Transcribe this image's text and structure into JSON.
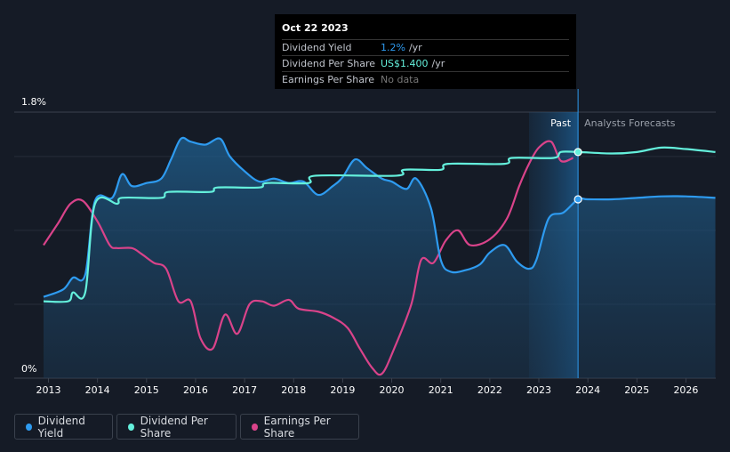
{
  "chart_data": {
    "type": "line",
    "y_axis": {
      "top_label": "1.8%",
      "bottom_label": "0%",
      "ylim": [
        0,
        1.8
      ]
    },
    "x_axis": {
      "ticks": [
        "2013",
        "2014",
        "2015",
        "2016",
        "2017",
        "2018",
        "2019",
        "2020",
        "2021",
        "2022",
        "2023",
        "2024",
        "2025",
        "2026"
      ],
      "xlim": [
        2012.9,
        2026.6
      ]
    },
    "past_label": "Past",
    "forecast_label": "Analysts Forecasts",
    "forecast_start": 2023.8,
    "past_band_start": 2022.8,
    "series": [
      {
        "name": "Dividend Yield",
        "color": "#2e9bf0",
        "points": [
          [
            2012.9,
            0.55
          ],
          [
            2013.3,
            0.6
          ],
          [
            2013.5,
            0.68
          ],
          [
            2013.75,
            0.7
          ],
          [
            2013.95,
            1.2
          ],
          [
            2014.3,
            1.22
          ],
          [
            2014.5,
            1.38
          ],
          [
            2014.7,
            1.3
          ],
          [
            2015.0,
            1.32
          ],
          [
            2015.3,
            1.35
          ],
          [
            2015.5,
            1.48
          ],
          [
            2015.7,
            1.62
          ],
          [
            2015.9,
            1.6
          ],
          [
            2016.2,
            1.58
          ],
          [
            2016.5,
            1.62
          ],
          [
            2016.7,
            1.5
          ],
          [
            2017.0,
            1.4
          ],
          [
            2017.3,
            1.33
          ],
          [
            2017.6,
            1.35
          ],
          [
            2017.9,
            1.32
          ],
          [
            2018.2,
            1.33
          ],
          [
            2018.5,
            1.24
          ],
          [
            2018.8,
            1.3
          ],
          [
            2019.0,
            1.36
          ],
          [
            2019.25,
            1.48
          ],
          [
            2019.5,
            1.42
          ],
          [
            2019.8,
            1.35
          ],
          [
            2020.0,
            1.33
          ],
          [
            2020.3,
            1.28
          ],
          [
            2020.5,
            1.35
          ],
          [
            2020.8,
            1.15
          ],
          [
            2021.0,
            0.8
          ],
          [
            2021.2,
            0.72
          ],
          [
            2021.5,
            0.73
          ],
          [
            2021.8,
            0.77
          ],
          [
            2022.0,
            0.85
          ],
          [
            2022.3,
            0.9
          ],
          [
            2022.55,
            0.79
          ],
          [
            2022.8,
            0.74
          ],
          [
            2022.95,
            0.8
          ],
          [
            2023.2,
            1.08
          ],
          [
            2023.5,
            1.12
          ],
          [
            2023.8,
            1.21
          ],
          [
            2024.0,
            1.21
          ],
          [
            2024.5,
            1.21
          ],
          [
            2025.0,
            1.22
          ],
          [
            2025.5,
            1.23
          ],
          [
            2026.0,
            1.23
          ],
          [
            2026.6,
            1.22
          ]
        ]
      },
      {
        "name": "Dividend Per Share",
        "color": "#64f0dc",
        "points": [
          [
            2012.9,
            0.52
          ],
          [
            2013.4,
            0.52
          ],
          [
            2013.5,
            0.58
          ],
          [
            2013.75,
            0.58
          ],
          [
            2013.95,
            1.18
          ],
          [
            2014.4,
            1.18
          ],
          [
            2014.5,
            1.22
          ],
          [
            2015.3,
            1.22
          ],
          [
            2015.45,
            1.26
          ],
          [
            2016.3,
            1.26
          ],
          [
            2016.45,
            1.29
          ],
          [
            2017.3,
            1.29
          ],
          [
            2017.45,
            1.32
          ],
          [
            2018.3,
            1.32
          ],
          [
            2018.45,
            1.37
          ],
          [
            2020.1,
            1.37
          ],
          [
            2020.25,
            1.41
          ],
          [
            2021.0,
            1.41
          ],
          [
            2021.15,
            1.45
          ],
          [
            2022.3,
            1.45
          ],
          [
            2022.45,
            1.49
          ],
          [
            2023.3,
            1.49
          ],
          [
            2023.45,
            1.53
          ],
          [
            2023.8,
            1.53
          ],
          [
            2024.5,
            1.52
          ],
          [
            2025.0,
            1.53
          ],
          [
            2025.5,
            1.56
          ],
          [
            2026.0,
            1.55
          ],
          [
            2026.6,
            1.53
          ]
        ]
      },
      {
        "name": "Earnings Per Share",
        "color": "#d9438a",
        "points": [
          [
            2012.9,
            0.9
          ],
          [
            2013.2,
            1.05
          ],
          [
            2013.45,
            1.18
          ],
          [
            2013.7,
            1.2
          ],
          [
            2014.0,
            1.06
          ],
          [
            2014.25,
            0.9
          ],
          [
            2014.4,
            0.88
          ],
          [
            2014.7,
            0.88
          ],
          [
            2014.9,
            0.84
          ],
          [
            2015.15,
            0.78
          ],
          [
            2015.4,
            0.74
          ],
          [
            2015.65,
            0.52
          ],
          [
            2015.9,
            0.52
          ],
          [
            2016.1,
            0.27
          ],
          [
            2016.35,
            0.2
          ],
          [
            2016.6,
            0.43
          ],
          [
            2016.85,
            0.3
          ],
          [
            2017.1,
            0.5
          ],
          [
            2017.35,
            0.52
          ],
          [
            2017.6,
            0.49
          ],
          [
            2017.9,
            0.53
          ],
          [
            2018.1,
            0.47
          ],
          [
            2018.5,
            0.45
          ],
          [
            2018.8,
            0.41
          ],
          [
            2019.1,
            0.34
          ],
          [
            2019.35,
            0.2
          ],
          [
            2019.6,
            0.07
          ],
          [
            2019.8,
            0.03
          ],
          [
            2020.05,
            0.2
          ],
          [
            2020.4,
            0.5
          ],
          [
            2020.6,
            0.8
          ],
          [
            2020.85,
            0.78
          ],
          [
            2021.1,
            0.93
          ],
          [
            2021.35,
            1.0
          ],
          [
            2021.6,
            0.9
          ],
          [
            2022.0,
            0.94
          ],
          [
            2022.35,
            1.08
          ],
          [
            2022.6,
            1.3
          ],
          [
            2022.8,
            1.45
          ],
          [
            2023.0,
            1.56
          ],
          [
            2023.25,
            1.6
          ],
          [
            2023.45,
            1.47
          ],
          [
            2023.7,
            1.49
          ]
        ]
      }
    ],
    "markers": [
      {
        "series": "Dividend Per Share",
        "x": 2023.8,
        "y": 1.53
      },
      {
        "series": "Dividend Yield",
        "x": 2023.8,
        "y": 1.21
      }
    ]
  },
  "tooltip": {
    "date": "Oct 22 2023",
    "rows": [
      {
        "label": "Dividend Yield",
        "value": "1.2%",
        "unit": "/yr"
      },
      {
        "label": "Dividend Per Share",
        "value": "US$1.400",
        "unit": "/yr"
      },
      {
        "label": "Earnings Per Share",
        "value": "No data",
        "unit": ""
      }
    ]
  },
  "legend": {
    "items": [
      {
        "label": "Dividend Yield",
        "color": "#2e9bf0"
      },
      {
        "label": "Dividend Per Share",
        "color": "#64f0dc"
      },
      {
        "label": "Earnings Per Share",
        "color": "#d9438a"
      }
    ]
  }
}
